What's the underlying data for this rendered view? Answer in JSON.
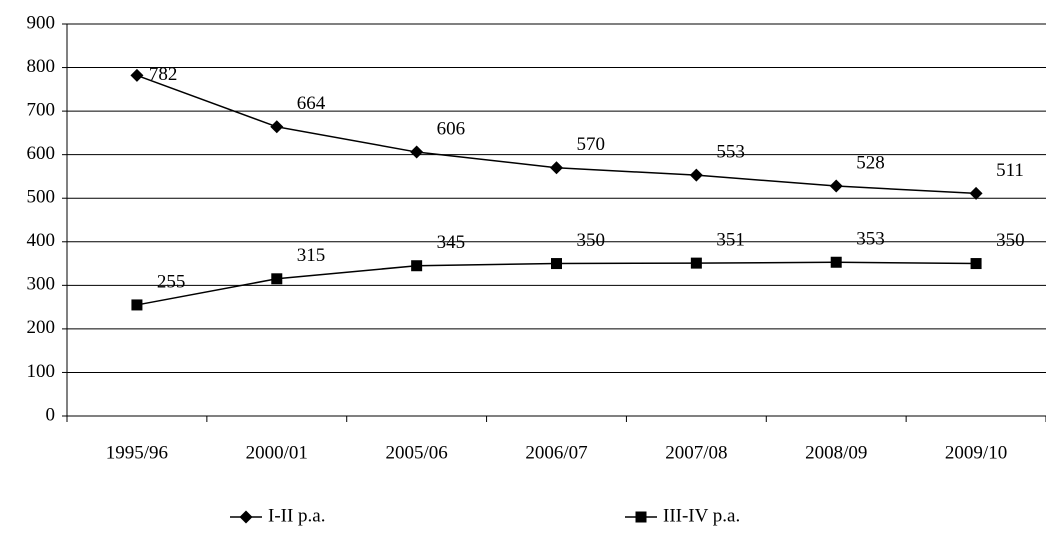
{
  "chart_data": {
    "type": "line",
    "categories": [
      "1995/96",
      "2000/01",
      "2005/06",
      "2006/07",
      "2007/08",
      "2008/09",
      "2009/10"
    ],
    "series": [
      {
        "name": "I-II p.a.",
        "color": "#000000",
        "marker": "diamond",
        "values": [
          782,
          664,
          606,
          570,
          553,
          528,
          511
        ]
      },
      {
        "name": "III-IV p.a.",
        "color": "#000000",
        "marker": "square",
        "values": [
          255,
          315,
          345,
          350,
          351,
          353,
          350
        ]
      }
    ],
    "ylim": [
      0,
      900
    ],
    "yticks": [
      0,
      100,
      200,
      300,
      400,
      500,
      600,
      700,
      800,
      900
    ],
    "grid": true,
    "legend": "bottom"
  }
}
